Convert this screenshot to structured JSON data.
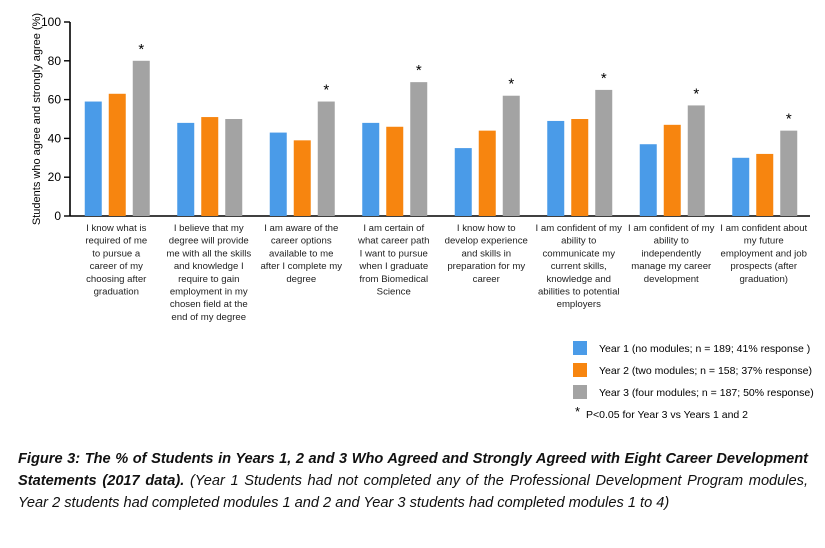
{
  "chart_data": {
    "type": "bar",
    "ylabel": "Students who agree and strongly agree (%)",
    "ylim": [
      0,
      100
    ],
    "yticks": [
      0,
      20,
      40,
      60,
      80,
      100
    ],
    "categories": [
      [
        "I know what is",
        "required of me",
        "to pursue a",
        "career of my",
        "choosing after",
        "graduation"
      ],
      [
        "I believe that my",
        "degree will provide",
        "me with all the skills",
        "and knowledge I",
        "require to gain",
        "employment in my",
        "chosen field at the",
        "end of my degree"
      ],
      [
        "I am aware of the",
        "career options",
        "available to me",
        "after I complete my",
        "degree"
      ],
      [
        "I am certain of",
        "what career path",
        "I want to pursue",
        "when I graduate",
        "from Biomedical",
        "Science"
      ],
      [
        "I know how to",
        "develop experience",
        "and skills in",
        "preparation for my",
        "career"
      ],
      [
        "I am confident of my",
        "ability to",
        "communicate my",
        "current skills,",
        "knowledge and",
        "abilities to potential",
        "employers"
      ],
      [
        "I am confident of my",
        "ability to",
        "independently",
        "manage my career",
        "development"
      ],
      [
        "I am confident about",
        "my future",
        "employment and job",
        "prospects (after",
        "graduation)"
      ]
    ],
    "series": [
      {
        "name": "Year 1 (no modules; n = 189; 41% response )",
        "color": "#4a9be8",
        "values": [
          59,
          48,
          43,
          48,
          35,
          49,
          37,
          30
        ]
      },
      {
        "name": "Year 2 (two modules; n = 158; 37% response)",
        "color": "#f7850f",
        "values": [
          63,
          51,
          39,
          46,
          44,
          50,
          47,
          32
        ]
      },
      {
        "name": "Year 3 (four modules; n = 187; 50% response)",
        "color": "#a3a3a3",
        "values": [
          80,
          50,
          59,
          69,
          62,
          65,
          57,
          44
        ]
      }
    ],
    "significant": [
      true,
      false,
      true,
      true,
      true,
      true,
      true,
      true
    ],
    "significance_marker": "*",
    "significance_note": "P<0.05 for Year 3 vs Years 1 and 2",
    "legend_position": "bottom-right",
    "grid": false
  },
  "caption": {
    "title": "Figure 3: The % of Students in Years 1, 2 and 3 Who Agreed and Strongly Agreed with Eight Career Development Statements (2017 data).",
    "body": "(Year 1 Students had not completed any of the Professional Development Program modules, Year 2 students had completed modules 1 and 2 and Year 3 students had completed modules 1 to 4)"
  }
}
